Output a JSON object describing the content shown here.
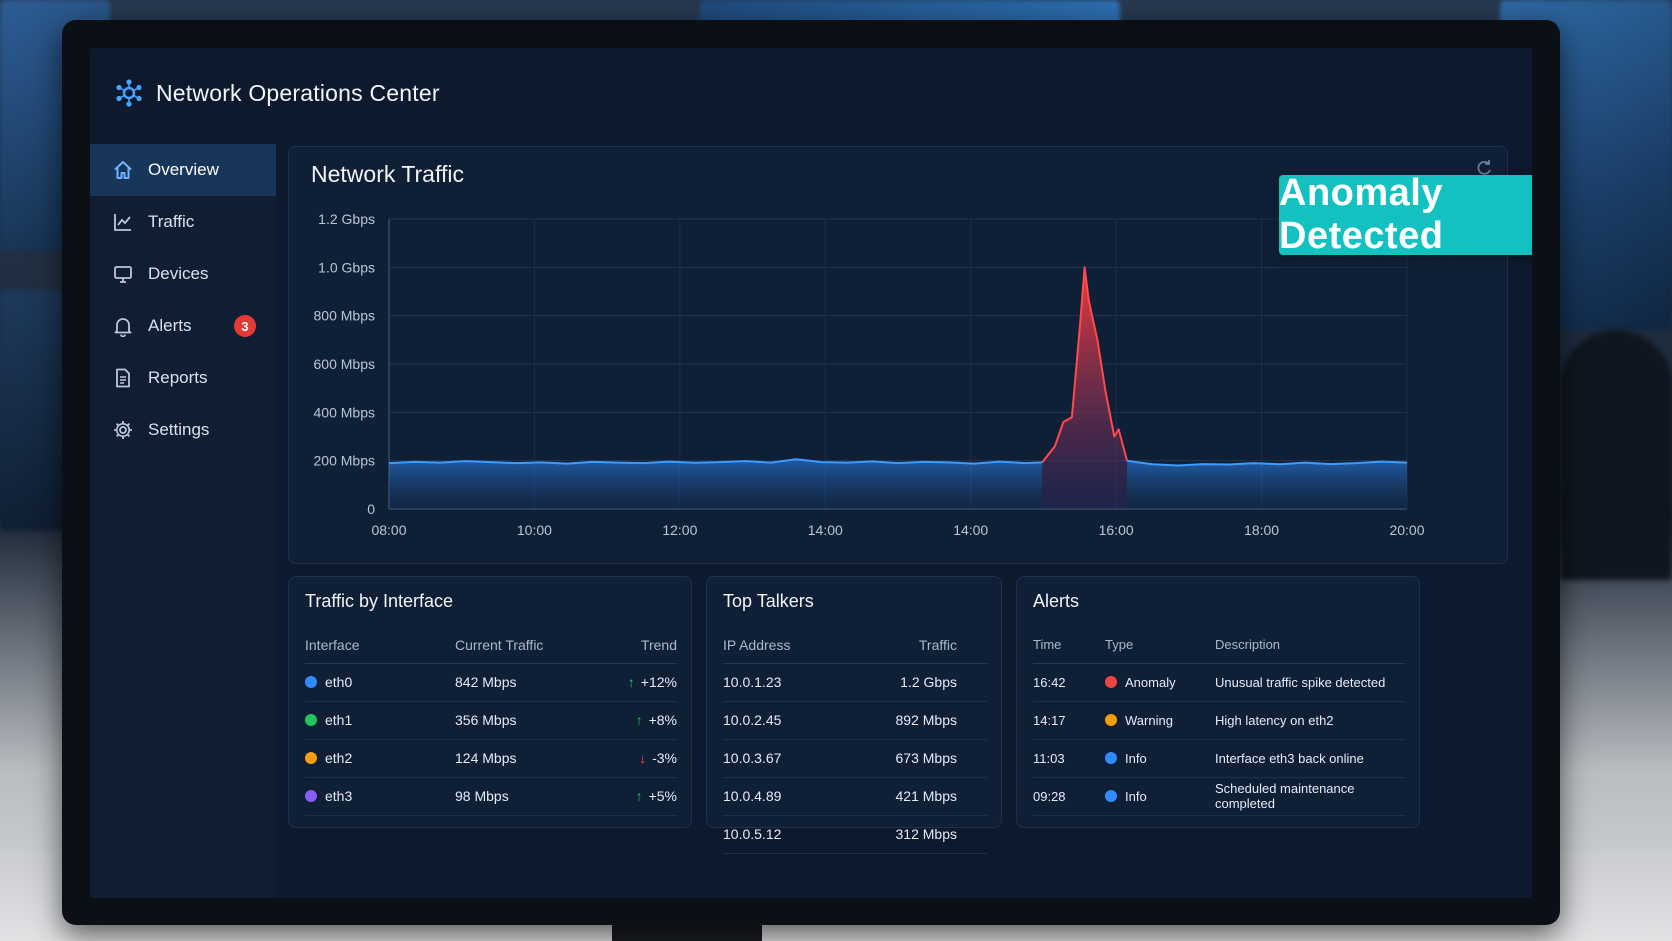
{
  "app": {
    "title": "Network Operations Center"
  },
  "sidebar": {
    "items": [
      {
        "label": "Overview",
        "icon": "home-icon",
        "active": true
      },
      {
        "label": "Traffic",
        "icon": "line-chart-icon"
      },
      {
        "label": "Devices",
        "icon": "monitor-icon"
      },
      {
        "label": "Alerts",
        "icon": "bell-icon",
        "badge": "3"
      },
      {
        "label": "Reports",
        "icon": "document-icon"
      },
      {
        "label": "Settings",
        "icon": "gear-icon"
      }
    ]
  },
  "traffic_chart": {
    "title": "Network Traffic",
    "banner": "Anomaly Detected"
  },
  "chart_data": {
    "type": "area",
    "title": "Network Traffic",
    "y_ticks": [
      "1.2 Gbps",
      "1.0 Gbps",
      "800 Mbps",
      "600 Mbps",
      "400 Mbps",
      "200 Mbps",
      "0"
    ],
    "x_ticks": [
      "08:00",
      "10:00",
      "12:00",
      "14:00",
      "14:00",
      "16:00",
      "18:00",
      "20:00"
    ],
    "ylim": [
      0,
      1200
    ],
    "units": "Mbps",
    "series": [
      {
        "color": "#2f8bff",
        "points": [
          [
            0,
            190
          ],
          [
            0.3,
            195
          ],
          [
            0.6,
            192
          ],
          [
            0.9,
            198
          ],
          [
            1.2,
            194
          ],
          [
            1.5,
            190
          ],
          [
            1.8,
            193
          ],
          [
            2.1,
            188
          ],
          [
            2.4,
            195
          ],
          [
            2.7,
            192
          ],
          [
            3,
            190
          ],
          [
            3.3,
            196
          ],
          [
            3.6,
            191
          ],
          [
            3.9,
            194
          ],
          [
            4.2,
            198
          ],
          [
            4.5,
            192
          ],
          [
            4.8,
            206
          ],
          [
            5.1,
            194
          ],
          [
            5.4,
            192
          ],
          [
            5.7,
            197
          ],
          [
            6,
            190
          ],
          [
            6.3,
            195
          ],
          [
            6.6,
            193
          ],
          [
            6.9,
            188
          ],
          [
            7.2,
            196
          ],
          [
            7.5,
            190
          ],
          [
            7.7,
            193
          ]
        ]
      },
      {
        "color": "#e23b3b",
        "points": [
          [
            7.7,
            193
          ],
          [
            7.85,
            260
          ],
          [
            7.95,
            360
          ],
          [
            8.05,
            380
          ],
          [
            8.15,
            780
          ],
          [
            8.2,
            1000
          ],
          [
            8.25,
            860
          ],
          [
            8.35,
            700
          ],
          [
            8.45,
            480
          ],
          [
            8.55,
            300
          ],
          [
            8.6,
            330
          ],
          [
            8.7,
            200
          ]
        ]
      },
      {
        "color": "#2f8bff",
        "points": [
          [
            8.7,
            200
          ],
          [
            9,
            185
          ],
          [
            9.3,
            180
          ],
          [
            9.6,
            186
          ],
          [
            9.9,
            184
          ],
          [
            10.2,
            190
          ],
          [
            10.5,
            185
          ],
          [
            10.8,
            192
          ],
          [
            11.1,
            186
          ],
          [
            11.4,
            190
          ],
          [
            11.7,
            196
          ],
          [
            12,
            192
          ]
        ]
      }
    ]
  },
  "interfaces": {
    "title": "Traffic by Interface",
    "headers": [
      "Interface",
      "Current Traffic",
      "Trend"
    ],
    "rows": [
      {
        "name": "eth0",
        "color": "#2f8bff",
        "traffic": "842 Mbps",
        "trend": "+12%",
        "dir": "up"
      },
      {
        "name": "eth1",
        "color": "#22c55e",
        "traffic": "356 Mbps",
        "trend": "+8%",
        "dir": "up"
      },
      {
        "name": "eth2",
        "color": "#f59e0b",
        "traffic": "124 Mbps",
        "trend": "-3%",
        "dir": "down"
      },
      {
        "name": "eth3",
        "color": "#8b5cf6",
        "traffic": "98 Mbps",
        "trend": "+5%",
        "dir": "up"
      }
    ]
  },
  "top_talkers": {
    "title": "Top Talkers",
    "headers": [
      "IP Address",
      "Traffic"
    ],
    "rows": [
      {
        "ip": "10.0.1.23",
        "traffic": "1.2 Gbps"
      },
      {
        "ip": "10.0.2.45",
        "traffic": "892 Mbps"
      },
      {
        "ip": "10.0.3.67",
        "traffic": "673 Mbps"
      },
      {
        "ip": "10.0.4.89",
        "traffic": "421 Mbps"
      },
      {
        "ip": "10.0.5.12",
        "traffic": "312 Mbps"
      }
    ]
  },
  "alerts": {
    "title": "Alerts",
    "headers": [
      "Time",
      "Type",
      "Description"
    ],
    "rows": [
      {
        "time": "16:42",
        "type": "Anomaly",
        "color": "#ef4444",
        "desc": "Unusual traffic spike detected"
      },
      {
        "time": "14:17",
        "type": "Warning",
        "color": "#f59e0b",
        "desc": "High latency on eth2"
      },
      {
        "time": "11:03",
        "type": "Info",
        "color": "#2f8bff",
        "desc": "Interface eth3 back online"
      },
      {
        "time": "09:28",
        "type": "Info",
        "color": "#2f8bff",
        "desc": "Scheduled maintenance completed"
      }
    ]
  }
}
